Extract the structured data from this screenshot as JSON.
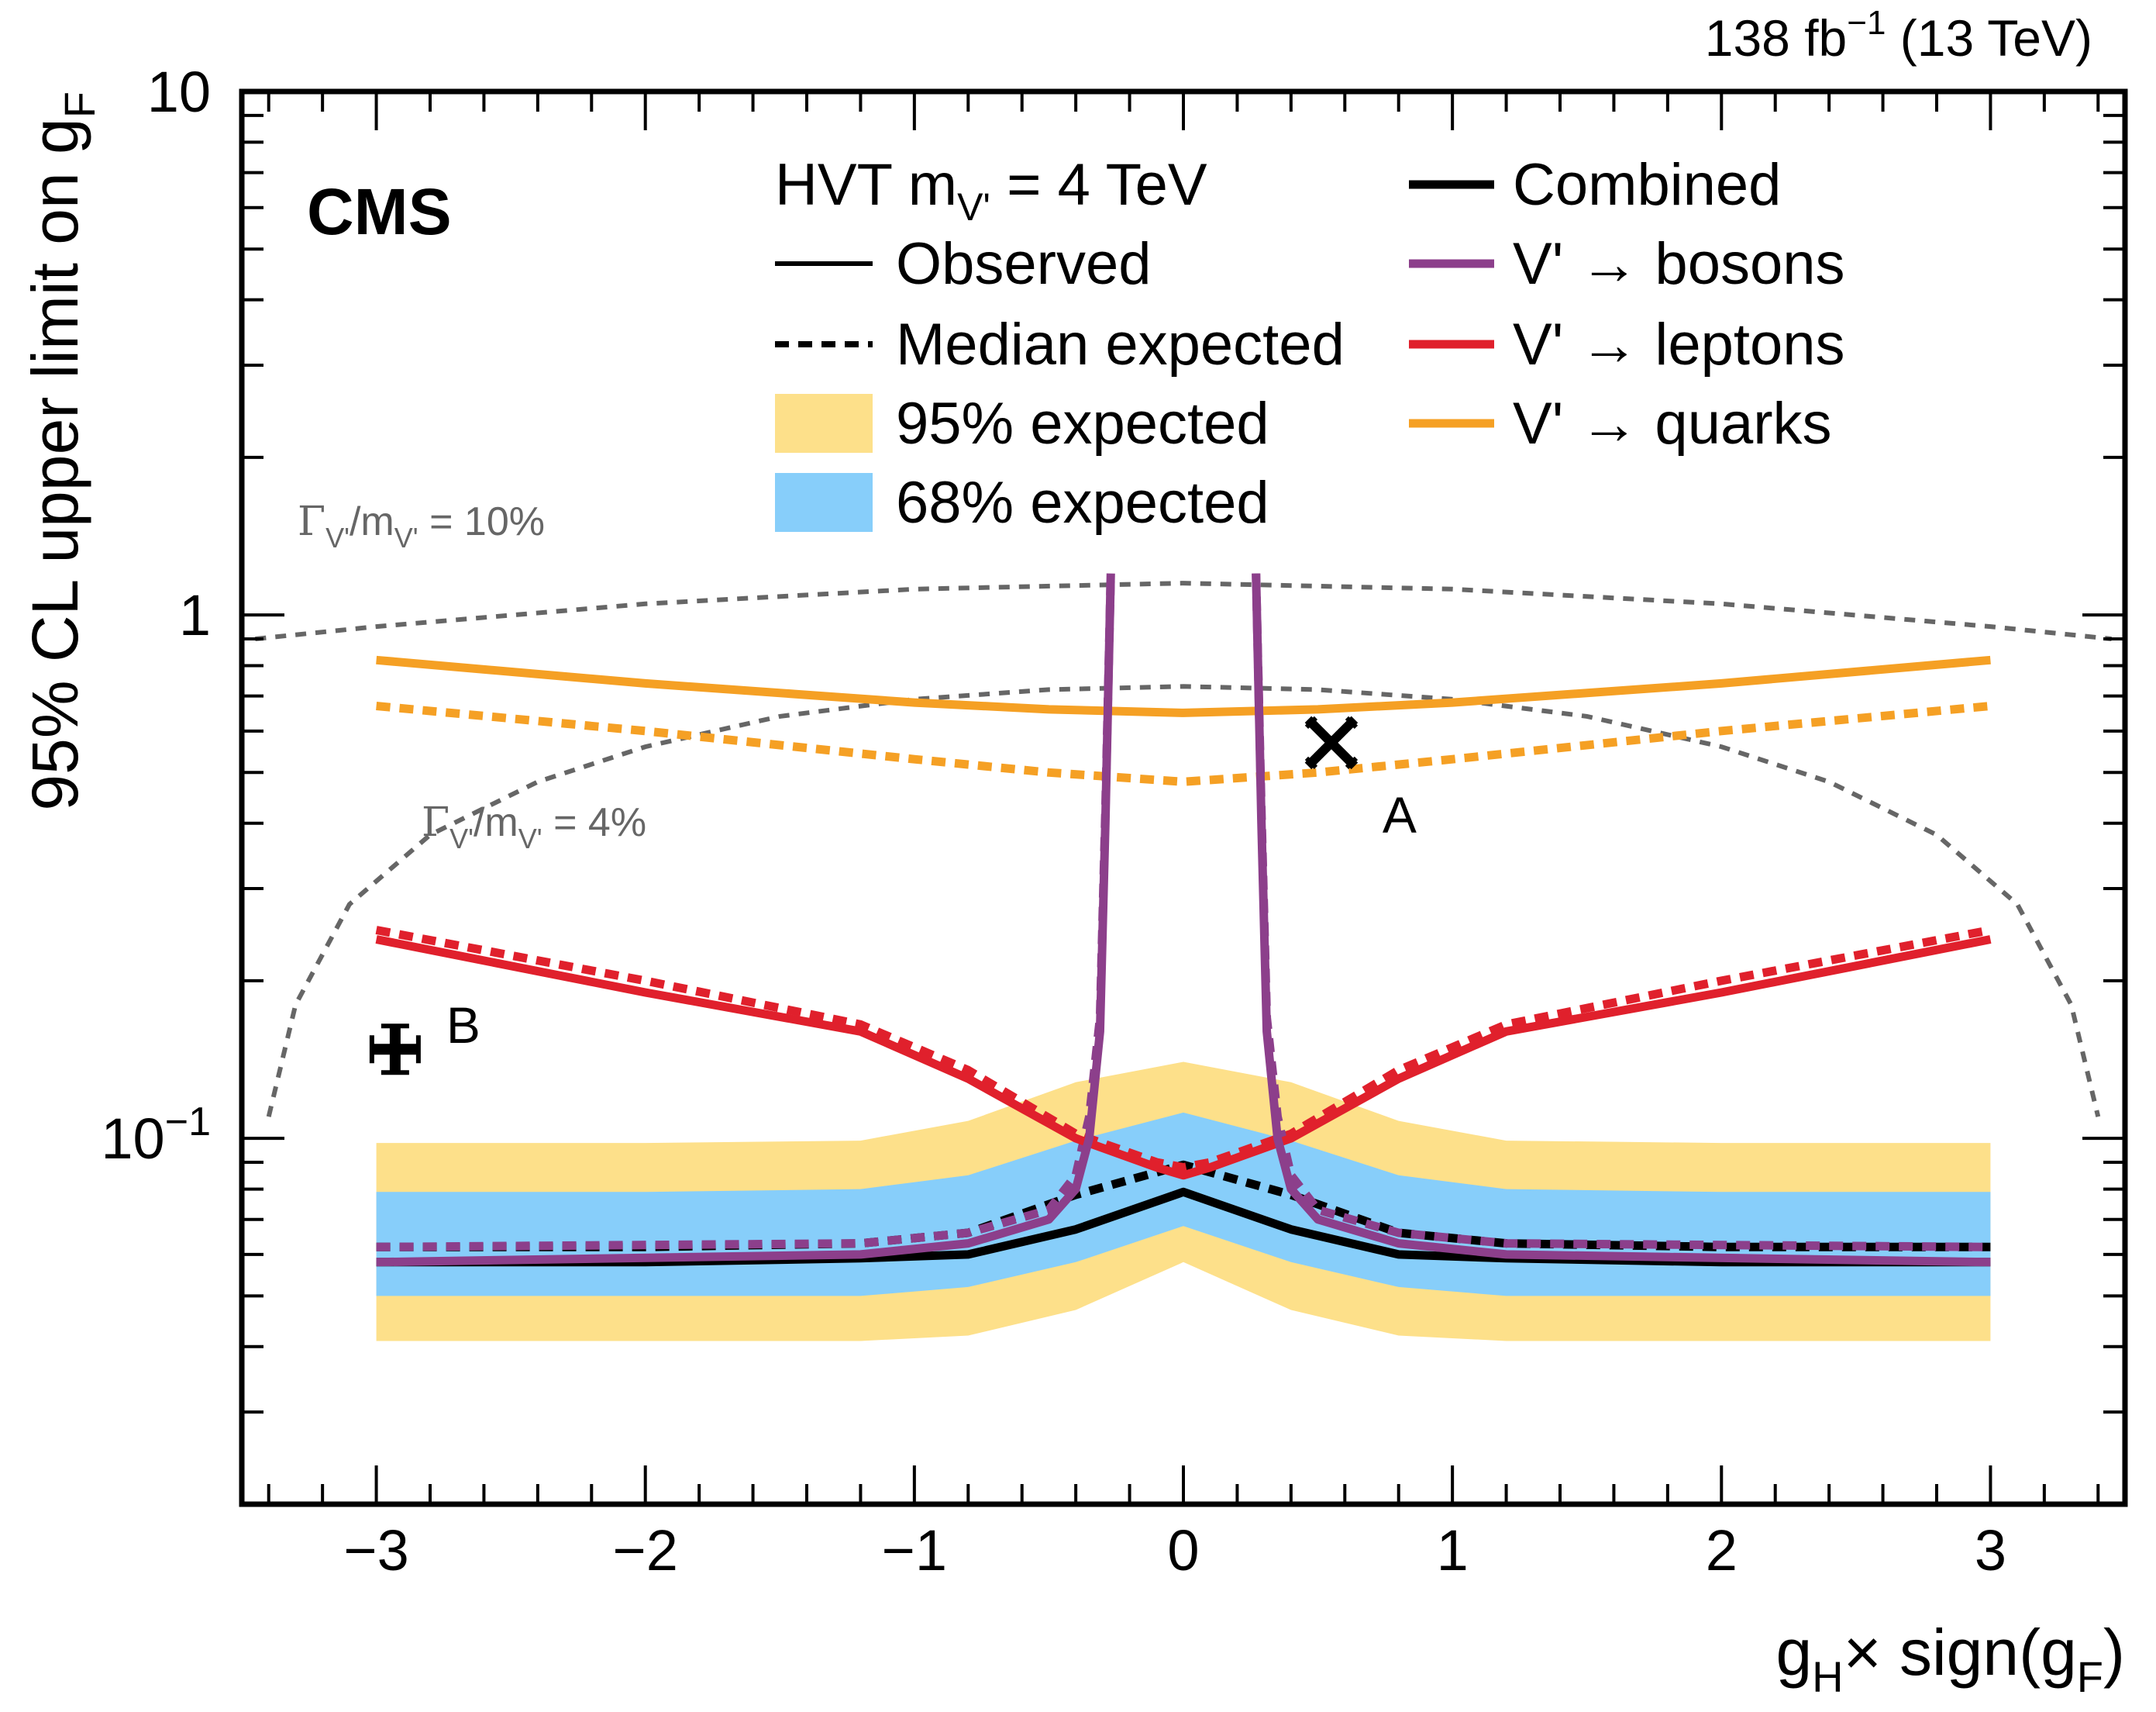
{
  "chart_data": {
    "type": "line",
    "title": "",
    "experiment_label": "CMS",
    "lumi_label": "138 fb",
    "lumi_exponent": "−1",
    "energy_label": " (13 TeV)",
    "xlabel": {
      "main": "g",
      "sub1": "H",
      "mid": "× sign(g",
      "sub2": "F",
      "end": ")"
    },
    "ylabel": {
      "main": "95% CL upper limit on g",
      "sub": "F"
    },
    "xlim": [
      -3.5,
      3.5
    ],
    "ylim": [
      0.02,
      10
    ],
    "yscale": "log",
    "x_ticks": [
      {
        "value": -3,
        "label": "−3"
      },
      {
        "value": -2,
        "label": "−2"
      },
      {
        "value": -1,
        "label": "−1"
      },
      {
        "value": 0,
        "label": "0"
      },
      {
        "value": 1,
        "label": "1"
      },
      {
        "value": 2,
        "label": "2"
      },
      {
        "value": 3,
        "label": "3"
      }
    ],
    "y_ticks": [
      {
        "value": 0.1,
        "base": "10",
        "exponent": "−1"
      },
      {
        "value": 1,
        "base": "1",
        "exponent": ""
      },
      {
        "value": 10,
        "base": "10",
        "exponent": ""
      }
    ],
    "legend": {
      "header": {
        "text": "HVT m",
        "sub": "V'",
        "end": " = 4 TeV"
      },
      "left": [
        {
          "label": "Observed",
          "style": "solid"
        },
        {
          "label": "Median expected",
          "style": "dashed"
        },
        {
          "label": " 95% expected",
          "style": "band",
          "color": "#fde08a"
        },
        {
          "label": " 68% expected",
          "style": "band",
          "color": "#87cefa"
        }
      ],
      "right": [
        {
          "label": "Combined",
          "color": "#000000"
        },
        {
          "label": "V' → bosons",
          "color": "#8c3f8b"
        },
        {
          "label": "V' → leptons",
          "color": "#e0202c"
        },
        {
          "label": "V' → quarks",
          "color": "#f5a024"
        }
      ]
    },
    "bands": {
      "x": [
        -3,
        -2,
        -1.2,
        -0.8,
        -0.4,
        0,
        0.4,
        0.8,
        1.2,
        2,
        3
      ],
      "y95_lo": [
        0.041,
        0.041,
        0.041,
        0.042,
        0.047,
        0.058,
        0.047,
        0.042,
        0.041,
        0.041,
        0.041
      ],
      "y95_hi": [
        0.098,
        0.098,
        0.099,
        0.108,
        0.128,
        0.14,
        0.128,
        0.108,
        0.099,
        0.098,
        0.098
      ],
      "y68_lo": [
        0.05,
        0.05,
        0.05,
        0.052,
        0.058,
        0.068,
        0.058,
        0.052,
        0.05,
        0.05,
        0.05
      ],
      "y68_hi": [
        0.079,
        0.079,
        0.08,
        0.085,
        0.099,
        0.112,
        0.099,
        0.085,
        0.08,
        0.079,
        0.079
      ]
    },
    "series": [
      {
        "name": "Combined observed",
        "color": "#000000",
        "style": "solid",
        "x": [
          -3,
          -2,
          -1.2,
          -0.8,
          -0.4,
          0,
          0.4,
          0.8,
          1.2,
          2,
          3
        ],
        "y": [
          0.058,
          0.058,
          0.059,
          0.06,
          0.067,
          0.079,
          0.067,
          0.06,
          0.059,
          0.058,
          0.058
        ]
      },
      {
        "name": "Combined expected",
        "color": "#000000",
        "style": "dashed",
        "x": [
          -3,
          -2,
          -1.2,
          -0.8,
          -0.4,
          0,
          0.4,
          0.8,
          1.2,
          2,
          3
        ],
        "y": [
          0.062,
          0.062,
          0.063,
          0.066,
          0.078,
          0.089,
          0.078,
          0.066,
          0.063,
          0.062,
          0.062
        ]
      },
      {
        "name": "V' → quarks observed",
        "color": "#f5a024",
        "style": "solid",
        "x": [
          -3,
          -2,
          -1,
          -0.5,
          0,
          0.5,
          1,
          2,
          3
        ],
        "y": [
          0.82,
          0.74,
          0.68,
          0.66,
          0.65,
          0.66,
          0.68,
          0.74,
          0.82
        ]
      },
      {
        "name": "V' → quarks expected",
        "color": "#f5a024",
        "style": "dashed",
        "x": [
          -3,
          -2,
          -1,
          -0.5,
          0,
          0.5,
          1,
          2,
          3
        ],
        "y": [
          0.67,
          0.6,
          0.53,
          0.5,
          0.48,
          0.5,
          0.53,
          0.6,
          0.67
        ]
      },
      {
        "name": "V' → leptons observed",
        "color": "#e0202c",
        "style": "solid",
        "x": [
          -3,
          -2,
          -1.2,
          -0.8,
          -0.4,
          -0.1,
          0,
          0.1,
          0.4,
          0.8,
          1.2,
          2,
          3
        ],
        "y": [
          0.24,
          0.19,
          0.16,
          0.13,
          0.1,
          0.088,
          0.085,
          0.088,
          0.1,
          0.13,
          0.16,
          0.19,
          0.24
        ]
      },
      {
        "name": "V' → leptons expected",
        "color": "#e0202c",
        "style": "dashed",
        "x": [
          -3,
          -2,
          -1.2,
          -0.8,
          -0.4,
          -0.1,
          0,
          0.1,
          0.4,
          0.8,
          1.2,
          2,
          3
        ],
        "y": [
          0.25,
          0.2,
          0.165,
          0.135,
          0.102,
          0.09,
          0.088,
          0.09,
          0.102,
          0.135,
          0.165,
          0.2,
          0.25
        ]
      },
      {
        "name": "V' → bosons observed left",
        "color": "#8c3f8b",
        "style": "solid",
        "x": [
          -3,
          -1.2,
          -0.8,
          -0.5,
          -0.4,
          -0.35,
          -0.31,
          -0.29,
          -0.27
        ],
        "y": [
          0.058,
          0.06,
          0.063,
          0.07,
          0.08,
          0.1,
          0.16,
          0.4,
          1.2
        ]
      },
      {
        "name": "V' → bosons expected left",
        "color": "#8c3f8b",
        "style": "dashed",
        "x": [
          -3,
          -1.2,
          -0.8,
          -0.5,
          -0.4,
          -0.35,
          -0.31,
          -0.29,
          -0.27
        ],
        "y": [
          0.062,
          0.063,
          0.066,
          0.073,
          0.085,
          0.11,
          0.17,
          0.42,
          1.2
        ]
      },
      {
        "name": "V' → bosons observed right",
        "color": "#8c3f8b",
        "style": "solid",
        "x": [
          0.27,
          0.29,
          0.31,
          0.35,
          0.4,
          0.5,
          0.8,
          1.2,
          3
        ],
        "y": [
          1.2,
          0.4,
          0.16,
          0.1,
          0.08,
          0.07,
          0.063,
          0.06,
          0.058
        ]
      },
      {
        "name": "V' → bosons expected right",
        "color": "#8c3f8b",
        "style": "dashed",
        "x": [
          0.27,
          0.29,
          0.31,
          0.35,
          0.4,
          0.5,
          0.8,
          1.2,
          3
        ],
        "y": [
          1.2,
          0.42,
          0.17,
          0.11,
          0.085,
          0.073,
          0.066,
          0.063,
          0.062
        ]
      }
    ],
    "width_contours": [
      {
        "label": "Γ",
        "sub1": "V'",
        "mid": "/m",
        "sub2": "V'",
        "end": " = 10%",
        "color": "#666666",
        "x": [
          -3.45,
          -3,
          -2,
          -1,
          0,
          1,
          2,
          3,
          3.45
        ],
        "y": [
          0.9,
          0.95,
          1.05,
          1.12,
          1.15,
          1.12,
          1.05,
          0.95,
          0.9
        ]
      },
      {
        "label": "Γ",
        "sub1": "V'",
        "mid": "/m",
        "sub2": "V'",
        "end": " = 4%",
        "color": "#666666",
        "x": [
          -3.4,
          -3.3,
          -3.1,
          -2.8,
          -2.4,
          -2,
          -1.5,
          -1,
          -0.5,
          0,
          0.5,
          1,
          1.5,
          2,
          2.4,
          2.8,
          3.1,
          3.3,
          3.4
        ],
        "y": [
          0.11,
          0.18,
          0.28,
          0.38,
          0.48,
          0.56,
          0.64,
          0.69,
          0.72,
          0.73,
          0.72,
          0.69,
          0.64,
          0.56,
          0.48,
          0.38,
          0.28,
          0.18,
          0.11
        ]
      }
    ],
    "benchmarks": [
      {
        "label": "A",
        "x": 0.55,
        "y": 0.57,
        "marker": "cross-x"
      },
      {
        "label": "B",
        "x": -2.93,
        "y": 0.148,
        "marker": "cross-plus"
      }
    ]
  }
}
